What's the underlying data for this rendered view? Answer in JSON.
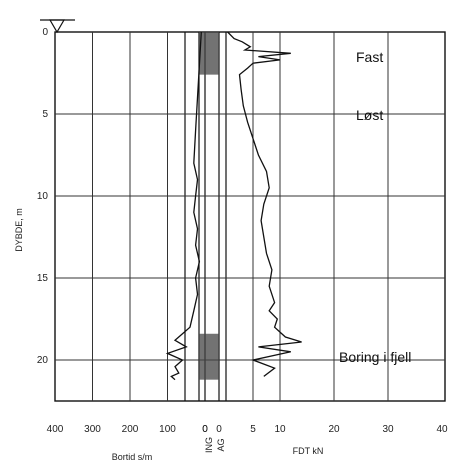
{
  "chart_data": {
    "type": "line",
    "title": "",
    "ylabel": "DYBDE, m",
    "ylim": [
      0,
      22.5
    ],
    "yticks": [
      0,
      5,
      10,
      15,
      20
    ],
    "grid": true,
    "left_panel": {
      "xlabel": "Bortid s/m",
      "xlim": [
        400,
        0
      ],
      "xticks": [
        "400",
        "300",
        "200",
        "100",
        "0"
      ]
    },
    "center_panel": {
      "xlabels": [
        "ING",
        "AG"
      ],
      "xticks": [
        "0",
        "0"
      ]
    },
    "right_panel": {
      "xlabel": "FDT kN",
      "xlim": [
        0,
        40
      ],
      "xticks": [
        "0",
        "5",
        "10",
        "20",
        "30",
        "40"
      ]
    },
    "annotations": [
      "Fast",
      "Løst",
      "Boring i fjell"
    ],
    "series": [
      {
        "panel": "right",
        "x": [
          0.3,
          1.5,
          3,
          4.5,
          3.5,
          12,
          6,
          10,
          5,
          4,
          2.5,
          2.8,
          3.2,
          4,
          5,
          6,
          7.5,
          8,
          7,
          6.5,
          7,
          7.5,
          8.5,
          8,
          9,
          8,
          9.5,
          9,
          10,
          11,
          14,
          6,
          12,
          5,
          9,
          7
        ],
        "y": [
          0,
          0.4,
          0.6,
          0.9,
          1.1,
          1.3,
          1.5,
          1.7,
          1.9,
          2.2,
          2.6,
          3.5,
          4.5,
          5.5,
          6.5,
          7.5,
          8.5,
          9.5,
          10.5,
          11.5,
          12.5,
          13.5,
          14.5,
          15.5,
          16.5,
          17.0,
          17.5,
          18.0,
          18.3,
          18.6,
          18.9,
          19.2,
          19.5,
          20.0,
          20.5,
          21.0
        ]
      },
      {
        "panel": "left",
        "x": [
          10,
          15,
          20,
          25,
          30,
          20,
          25,
          30,
          20,
          25,
          15,
          25,
          20,
          30,
          40,
          60,
          80,
          50,
          100,
          60,
          80,
          70,
          90,
          80
        ],
        "y": [
          0,
          2,
          4,
          6,
          8,
          9,
          10,
          11,
          12,
          13,
          14,
          15,
          16,
          17,
          18,
          18.4,
          18.8,
          19.2,
          19.6,
          20.0,
          20.4,
          20.8,
          21.0,
          21.2
        ]
      }
    ]
  }
}
